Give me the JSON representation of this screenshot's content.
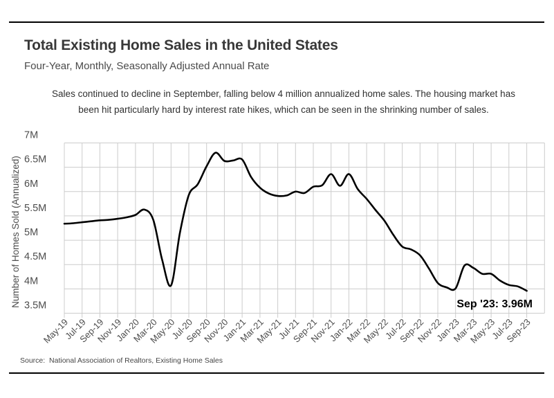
{
  "page": {
    "title": "Total Existing Home Sales in the United States",
    "subtitle": "Four-Year, Monthly, Seasonally Adjusted Annual Rate",
    "annotation_line1": "Sales continued to decline in September, falling below 4 million annualized home sales. The housing market has",
    "annotation_line2": "been hit particularly hard by interest rate hikes, which can be seen in the shrinking number of sales.",
    "source": "Source:  National Association of Realtors, Existing Home Sales"
  },
  "chart_data": {
    "type": "line",
    "title": "Total Existing Home Sales in the United States",
    "subtitle": "Four-Year, Monthly, Seasonally Adjusted Annual Rate",
    "xlabel": "",
    "ylabel": "Number of Homes Sold (Annualized)",
    "ylim": [
      3.5,
      7
    ],
    "grid": true,
    "legend": "none",
    "y_tick_labels": [
      "7M",
      "6.5M",
      "6M",
      "5.5M",
      "5M",
      "4.5M",
      "4M",
      "3.5M"
    ],
    "y_tick_values": [
      7,
      6.5,
      6,
      5.5,
      5,
      4.5,
      4,
      3.5
    ],
    "x_tick_every": 2,
    "end_label": "Sep '23: 3.96M",
    "months": [
      "May-19",
      "Jun-19",
      "Jul-19",
      "Aug-19",
      "Sep-19",
      "Oct-19",
      "Nov-19",
      "Dec-19",
      "Jan-20",
      "Feb-20",
      "Mar-20",
      "Apr-20",
      "May-20",
      "Jun-20",
      "Jul-20",
      "Aug-20",
      "Sep-20",
      "Oct-20",
      "Nov-20",
      "Dec-20",
      "Jan-21",
      "Feb-21",
      "Mar-21",
      "Apr-21",
      "May-21",
      "Jun-21",
      "Jul-21",
      "Aug-21",
      "Sep-21",
      "Oct-21",
      "Nov-21",
      "Dec-21",
      "Jan-22",
      "Feb-22",
      "Mar-22",
      "Apr-22",
      "May-22",
      "Jun-22",
      "Jul-22",
      "Aug-22",
      "Sep-22",
      "Oct-22",
      "Nov-22",
      "Dec-22",
      "Jan-23",
      "Feb-23",
      "Mar-23",
      "Apr-23",
      "May-23",
      "Jun-23",
      "Jul-23",
      "Aug-23",
      "Sep-23"
    ],
    "values": [
      5.34,
      5.35,
      5.37,
      5.39,
      5.41,
      5.42,
      5.44,
      5.47,
      5.52,
      5.63,
      5.42,
      4.6,
      4.07,
      5.15,
      5.93,
      6.15,
      6.52,
      6.8,
      6.63,
      6.64,
      6.66,
      6.3,
      6.08,
      5.96,
      5.91,
      5.92,
      6.0,
      5.97,
      6.1,
      6.13,
      6.36,
      6.12,
      6.36,
      6.05,
      5.85,
      5.62,
      5.4,
      5.11,
      4.87,
      4.81,
      4.69,
      4.42,
      4.12,
      4.03,
      4.01,
      4.48,
      4.43,
      4.31,
      4.31,
      4.17,
      4.08,
      4.05,
      3.96
    ],
    "line_color": "#000000",
    "grid_color": "#cccccc",
    "axis_label_color": "#4d4d4d",
    "end_label_color": "#000000"
  }
}
